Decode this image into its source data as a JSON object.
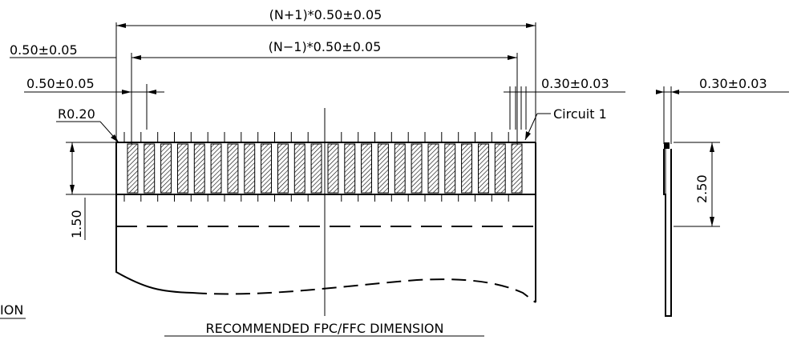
{
  "labels": {
    "overall_width": "(N+1)*0.50±0.05",
    "inner_width": "(N−1)*0.50±0.05",
    "edge_offset": "0.50±0.05",
    "pitch": "0.50±0.05",
    "trace_gap": "0.30±0.03",
    "side_thickness": "0.30±0.03",
    "corner_radius": "R0.20",
    "circuit": "Circuit  1",
    "pad_height": "1.50",
    "side_height": "2.50",
    "caption": "RECOMMENDED  FPC/FFC  DIMENSION",
    "cut_caption": "ION"
  },
  "pads": {
    "count": 24
  }
}
